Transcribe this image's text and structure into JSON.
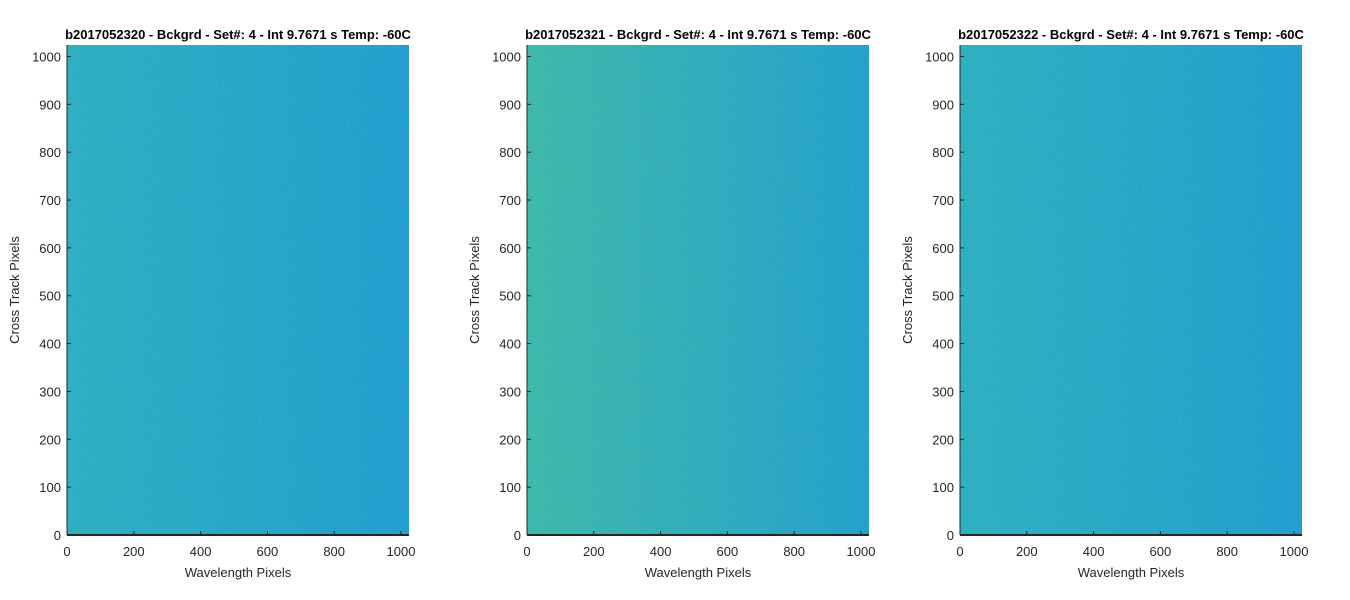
{
  "figure": {
    "background": "#ffffff"
  },
  "chart_data": [
    {
      "type": "heatmap",
      "title": "b2017052320 - Bckgrd - Set#: 4 - Int 9.7671 s Temp: -60C",
      "xlabel": "Wavelength Pixels",
      "ylabel": "Cross Track Pixels",
      "xlim": [
        0,
        1024
      ],
      "ylim": [
        0,
        1024
      ],
      "xticks": [
        0,
        200,
        400,
        600,
        800,
        1000
      ],
      "yticks": [
        0,
        100,
        200,
        300,
        400,
        500,
        600,
        700,
        800,
        900,
        1000
      ],
      "color_low_x": "#1aa8c0",
      "color_high_x": "#0f95cf",
      "noise": "fine speckle, uniform background"
    },
    {
      "type": "heatmap",
      "title": "b2017052321 - Bckgrd - Set#: 4 - Int 9.7671 s Temp: -60C",
      "xlabel": "Wavelength Pixels",
      "ylabel": "Cross Track Pixels",
      "xlim": [
        0,
        1024
      ],
      "ylim": [
        0,
        1024
      ],
      "xticks": [
        0,
        200,
        400,
        600,
        800,
        1000
      ],
      "yticks": [
        0,
        100,
        200,
        300,
        400,
        500,
        600,
        700,
        800,
        900,
        1000
      ],
      "color_low_x": "#2cb2a8",
      "color_high_x": "#1098cc",
      "noise": "fine speckle, uniform background"
    },
    {
      "type": "heatmap",
      "title": "b2017052322 - Bckgrd - Set#: 4 - Int 9.7671 s Temp: -60C",
      "xlabel": "Wavelength Pixels",
      "ylabel": "Cross Track Pixels",
      "xlim": [
        0,
        1024
      ],
      "ylim": [
        0,
        1024
      ],
      "xticks": [
        0,
        200,
        400,
        600,
        800,
        1000
      ],
      "yticks": [
        0,
        100,
        200,
        300,
        400,
        500,
        600,
        700,
        800,
        900,
        1000
      ],
      "color_low_x": "#1ba9bf",
      "color_high_x": "#0f95cf",
      "noise": "fine speckle, uniform background"
    }
  ]
}
